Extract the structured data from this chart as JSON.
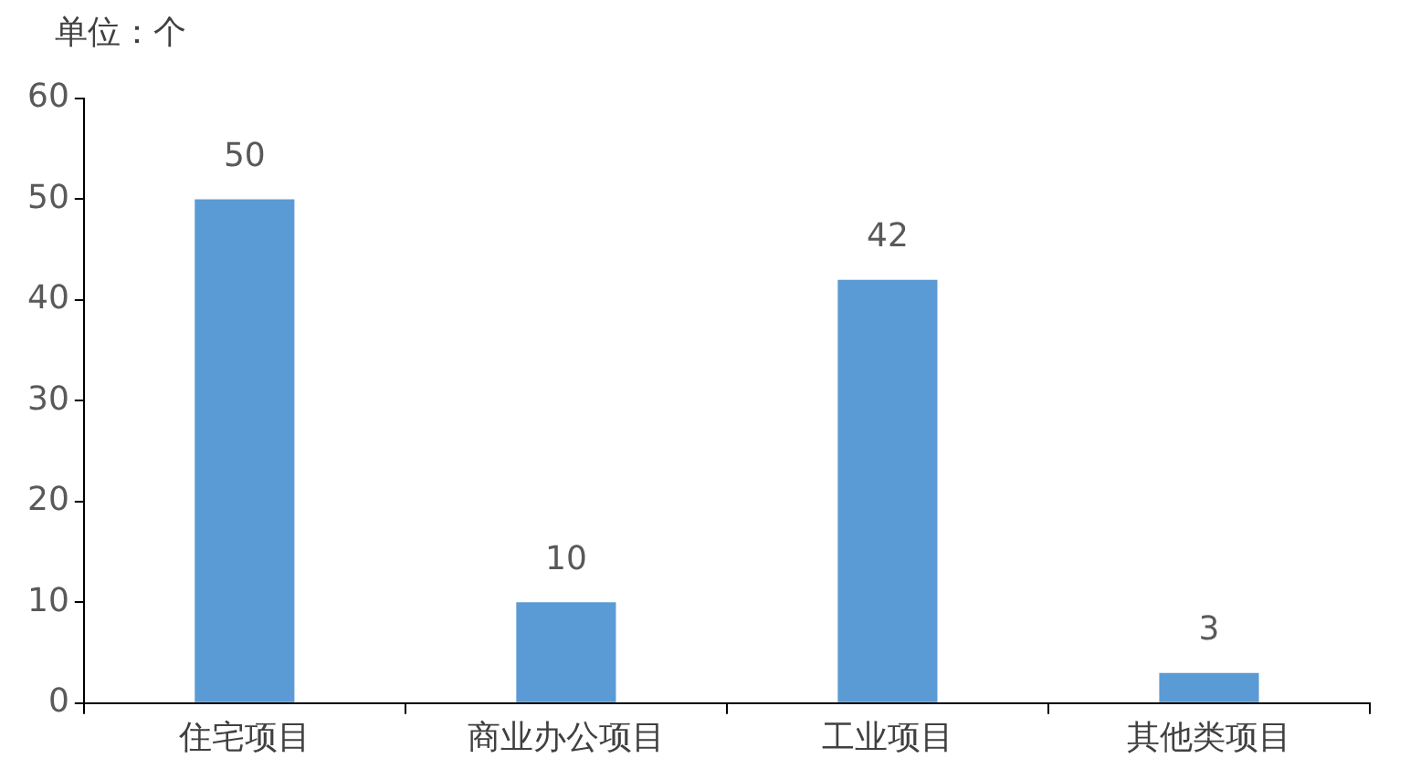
{
  "chart_data": {
    "type": "bar",
    "ylabel": "单位：个",
    "categories": [
      "住宅项目",
      "商业办公项目",
      "工业项目",
      "其他类项目"
    ],
    "values": [
      50,
      10,
      42,
      3
    ],
    "color": "#5b9bd5",
    "ylim": [
      0,
      60
    ],
    "yticks": [
      0,
      10,
      20,
      30,
      40,
      50,
      60
    ],
    "grid": false,
    "legend": false,
    "data_labels": true
  }
}
